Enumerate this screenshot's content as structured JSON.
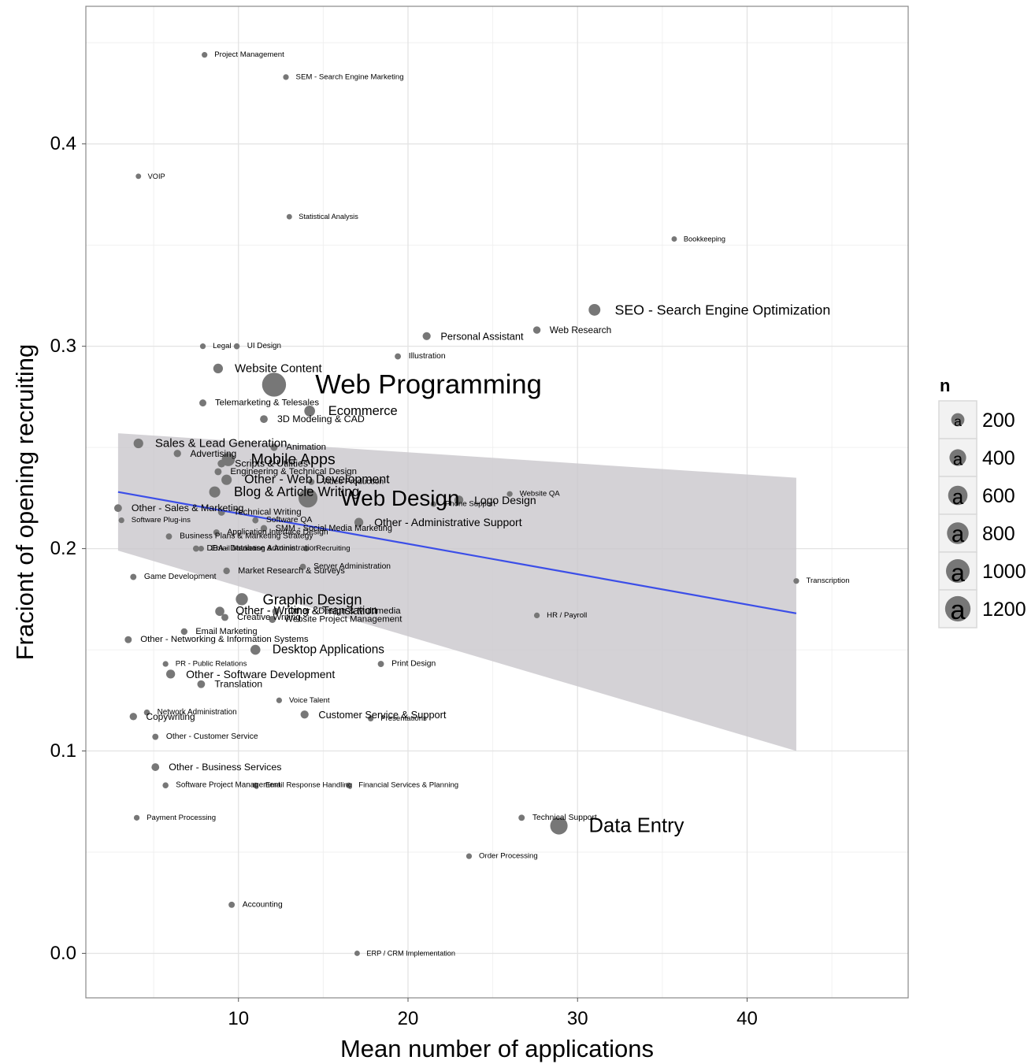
{
  "chart_data": {
    "type": "scatter",
    "title": "",
    "xlabel": "Mean number of applications",
    "ylabel": "Fraciont of opening recruiting",
    "xlim": [
      1,
      49.5
    ],
    "ylim": [
      -0.022,
      0.468
    ],
    "x_ticks": [
      10,
      20,
      30,
      40
    ],
    "y_ticks": [
      0.0,
      0.1,
      0.2,
      0.3,
      0.4
    ],
    "x_tick_labels": [
      "10",
      "20",
      "30",
      "40"
    ],
    "y_tick_labels": [
      "0.0",
      "0.1",
      "0.2",
      "0.3",
      "0.4"
    ],
    "grid": true,
    "legend": {
      "title": "n",
      "position": "right",
      "glyph": "a",
      "sizes": [
        200,
        400,
        600,
        800,
        1000,
        1200
      ],
      "labels": [
        "200",
        "400",
        "600",
        "800",
        "1000",
        "1200"
      ]
    },
    "colors": {
      "points": "#777777",
      "labels": "#000000",
      "trend_line": "#3b4ee8",
      "confidence_band": "#c9c7cc",
      "panel_border": "#888888",
      "grid": "#e3e3e3"
    },
    "trend": {
      "x": [
        2.9,
        42.9
      ],
      "y": [
        0.228,
        0.168
      ],
      "ci_lower": [
        0.199,
        0.1
      ],
      "ci_upper": [
        0.257,
        0.235
      ]
    },
    "points": [
      {
        "label": "Project Management",
        "x": 8.0,
        "y": 0.444,
        "n": 30
      },
      {
        "label": "SEM - Search Engine Marketing",
        "x": 12.8,
        "y": 0.433,
        "n": 30
      },
      {
        "label": "VOIP",
        "x": 4.1,
        "y": 0.384,
        "n": 25
      },
      {
        "label": "Statistical Analysis",
        "x": 13.0,
        "y": 0.364,
        "n": 25
      },
      {
        "label": "Bookkeeping",
        "x": 35.7,
        "y": 0.353,
        "n": 25
      },
      {
        "label": "SEO - Search Engine Optimization",
        "x": 31.0,
        "y": 0.318,
        "n": 250
      },
      {
        "label": "Web Research",
        "x": 27.6,
        "y": 0.308,
        "n": 70
      },
      {
        "label": "Personal Assistant",
        "x": 21.1,
        "y": 0.305,
        "n": 90
      },
      {
        "label": "Legal",
        "x": 7.9,
        "y": 0.3,
        "n": 30
      },
      {
        "label": "UI Design",
        "x": 9.9,
        "y": 0.3,
        "n": 35
      },
      {
        "label": "Illustration",
        "x": 19.4,
        "y": 0.295,
        "n": 40
      },
      {
        "label": "Website Content",
        "x": 8.8,
        "y": 0.289,
        "n": 150
      },
      {
        "label": "Web Programming",
        "x": 12.1,
        "y": 0.281,
        "n": 1350
      },
      {
        "label": "Telemarketing & Telesales",
        "x": 7.9,
        "y": 0.272,
        "n": 60
      },
      {
        "label": "Ecommerce",
        "x": 14.2,
        "y": 0.268,
        "n": 200
      },
      {
        "label": "3D Modeling & CAD",
        "x": 11.5,
        "y": 0.264,
        "n": 80
      },
      {
        "label": "Sales & Lead Generation",
        "x": 4.1,
        "y": 0.252,
        "n": 150
      },
      {
        "label": "Advertising",
        "x": 6.4,
        "y": 0.247,
        "n": 70
      },
      {
        "label": "Animation",
        "x": 12.1,
        "y": 0.25,
        "n": 60
      },
      {
        "label": "Scripts & Utilities",
        "x": 9.0,
        "y": 0.242,
        "n": 80
      },
      {
        "label": "Mobile Apps",
        "x": 9.4,
        "y": 0.244,
        "n": 330
      },
      {
        "label": "Engineering & Technical Design",
        "x": 8.8,
        "y": 0.238,
        "n": 60
      },
      {
        "label": "Other - Web Development",
        "x": 9.3,
        "y": 0.234,
        "n": 180
      },
      {
        "label": "Video Production",
        "x": 14.3,
        "y": 0.233,
        "n": 40
      },
      {
        "label": "Blog & Article Writing",
        "x": 8.6,
        "y": 0.228,
        "n": 220
      },
      {
        "label": "Web Design",
        "x": 14.1,
        "y": 0.225,
        "n": 800
      },
      {
        "label": "iPhone Support",
        "x": 21.5,
        "y": 0.222,
        "n": 30
      },
      {
        "label": "Website QA",
        "x": 26.0,
        "y": 0.227,
        "n": 30
      },
      {
        "label": "Logo Design",
        "x": 23.0,
        "y": 0.224,
        "n": 120
      },
      {
        "label": "Other - Sales & Marketing",
        "x": 2.9,
        "y": 0.22,
        "n": 80
      },
      {
        "label": "Technical Writing",
        "x": 9.0,
        "y": 0.218,
        "n": 60
      },
      {
        "label": "Software Plug-ins",
        "x": 3.1,
        "y": 0.214,
        "n": 30
      },
      {
        "label": "Software QA",
        "x": 11.0,
        "y": 0.214,
        "n": 40
      },
      {
        "label": "SMM - Social Media Marketing",
        "x": 11.5,
        "y": 0.21,
        "n": 50
      },
      {
        "label": "Other - Administrative Support",
        "x": 17.1,
        "y": 0.213,
        "n": 120
      },
      {
        "label": "Application Interface Design",
        "x": 8.7,
        "y": 0.208,
        "n": 40
      },
      {
        "label": "Business Plans & Marketing Strategy",
        "x": 5.9,
        "y": 0.206,
        "n": 40
      },
      {
        "label": "DBA - Database Administration",
        "x": 7.5,
        "y": 0.2,
        "n": 40
      },
      {
        "label": "Email Marketing & Admin",
        "x": 7.8,
        "y": 0.2,
        "n": 30
      },
      {
        "label": "Recruiting",
        "x": 14.0,
        "y": 0.2,
        "n": 30
      },
      {
        "label": "Server Administration",
        "x": 13.8,
        "y": 0.191,
        "n": 40
      },
      {
        "label": "Market Research & Surveys",
        "x": 9.3,
        "y": 0.189,
        "n": 50
      },
      {
        "label": "Game Development",
        "x": 3.8,
        "y": 0.186,
        "n": 40
      },
      {
        "label": "Transcription",
        "x": 42.9,
        "y": 0.184,
        "n": 30
      },
      {
        "label": "Graphic Design",
        "x": 10.2,
        "y": 0.175,
        "n": 270
      },
      {
        "label": "Other - Writing & Translation",
        "x": 8.9,
        "y": 0.169,
        "n": 130
      },
      {
        "label": "Other - Design & Multimedia",
        "x": 12.2,
        "y": 0.169,
        "n": 60
      },
      {
        "label": "Creative Writing",
        "x": 9.2,
        "y": 0.166,
        "n": 60
      },
      {
        "label": "Website Project Management",
        "x": 12.0,
        "y": 0.165,
        "n": 60
      },
      {
        "label": "HR / Payroll",
        "x": 27.6,
        "y": 0.167,
        "n": 30
      },
      {
        "label": "Email Marketing",
        "x": 6.8,
        "y": 0.159,
        "n": 50
      },
      {
        "label": "Other - Networking & Information Systems",
        "x": 3.5,
        "y": 0.155,
        "n": 60
      },
      {
        "label": "Desktop Applications",
        "x": 11.0,
        "y": 0.15,
        "n": 160
      },
      {
        "label": "PR - Public Relations",
        "x": 5.7,
        "y": 0.143,
        "n": 30
      },
      {
        "label": "Print Design",
        "x": 18.4,
        "y": 0.143,
        "n": 40
      },
      {
        "label": "Other - Software Development",
        "x": 6.0,
        "y": 0.138,
        "n": 120
      },
      {
        "label": "Translation",
        "x": 7.8,
        "y": 0.133,
        "n": 80
      },
      {
        "label": "Voice Talent",
        "x": 12.4,
        "y": 0.125,
        "n": 30
      },
      {
        "label": "Network Administration",
        "x": 4.6,
        "y": 0.119,
        "n": 35
      },
      {
        "label": "Copywriting",
        "x": 3.8,
        "y": 0.117,
        "n": 70
      },
      {
        "label": "Customer Service & Support",
        "x": 13.9,
        "y": 0.118,
        "n": 90
      },
      {
        "label": "Presentations",
        "x": 17.8,
        "y": 0.116,
        "n": 30
      },
      {
        "label": "Other - Customer Service",
        "x": 5.1,
        "y": 0.107,
        "n": 40
      },
      {
        "label": "Other - Business Services",
        "x": 5.1,
        "y": 0.092,
        "n": 80
      },
      {
        "label": "Software Project Management",
        "x": 5.7,
        "y": 0.083,
        "n": 35
      },
      {
        "label": "Email Response Handling",
        "x": 11.0,
        "y": 0.083,
        "n": 30
      },
      {
        "label": "Financial Services & Planning",
        "x": 16.5,
        "y": 0.083,
        "n": 30
      },
      {
        "label": "Payment Processing",
        "x": 4.0,
        "y": 0.067,
        "n": 30
      },
      {
        "label": "Technical Support",
        "x": 26.7,
        "y": 0.067,
        "n": 40
      },
      {
        "label": "Data Entry",
        "x": 28.9,
        "y": 0.063,
        "n": 650
      },
      {
        "label": "Order Processing",
        "x": 23.6,
        "y": 0.048,
        "n": 30
      },
      {
        "label": "Accounting",
        "x": 9.6,
        "y": 0.024,
        "n": 40
      },
      {
        "label": "ERP / CRM Implementation",
        "x": 17.0,
        "y": 0.0,
        "n": 25
      }
    ]
  }
}
